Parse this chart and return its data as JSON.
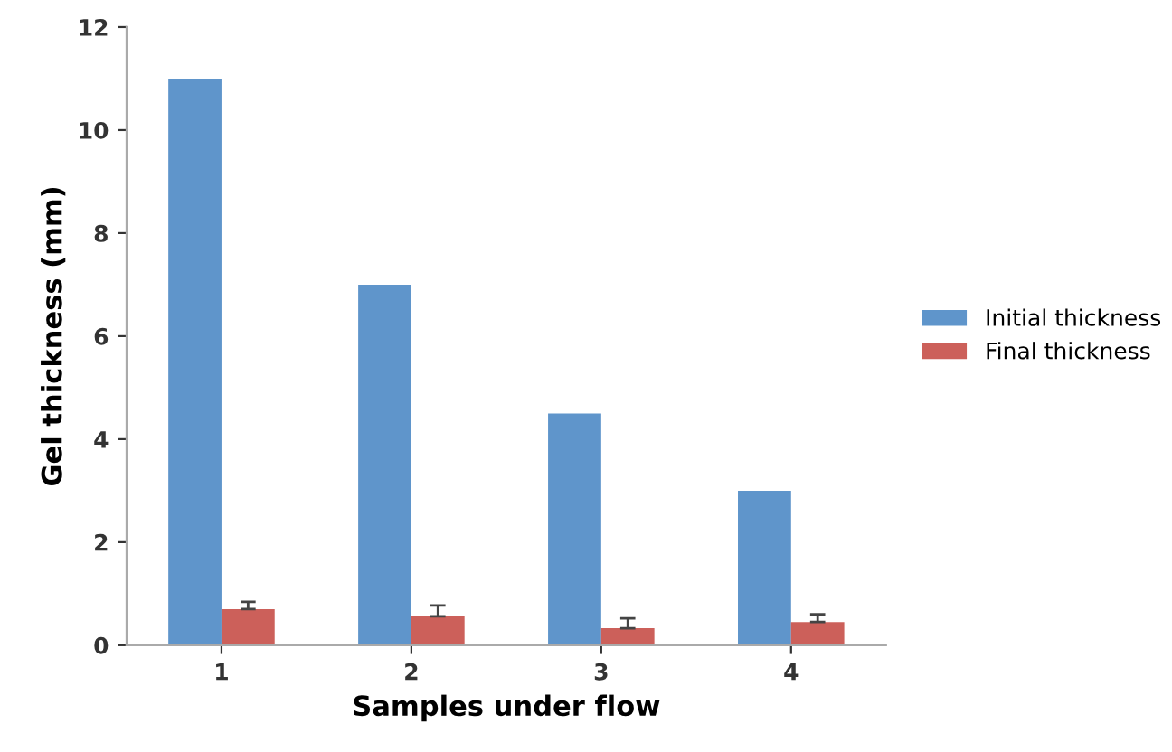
{
  "chart_data": {
    "type": "bar",
    "xlabel": "Samples under flow",
    "ylabel": "Gel thickness (mm)",
    "categories": [
      "1",
      "2",
      "3",
      "4"
    ],
    "series": [
      {
        "name": "Initial thickness",
        "color": "#5f95cb",
        "values": [
          11,
          7,
          4.5,
          3
        ]
      },
      {
        "name": "Final thickness",
        "color": "#cc605a",
        "values": [
          0.7,
          0.56,
          0.33,
          0.45
        ],
        "errors": [
          [
            0.7,
            0.84
          ],
          [
            0.56,
            0.77
          ],
          [
            0.33,
            0.52
          ],
          [
            0.45,
            0.6
          ]
        ]
      }
    ],
    "ylim": [
      0,
      12
    ],
    "yticks": [
      0,
      2,
      4,
      6,
      8,
      10,
      12
    ],
    "grid": false,
    "legend": "right"
  }
}
